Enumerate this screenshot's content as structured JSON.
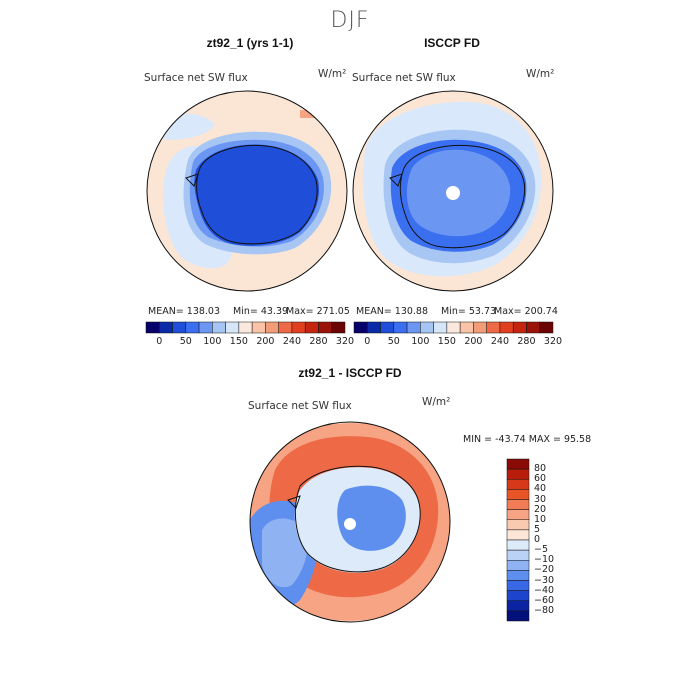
{
  "figure": {
    "season": "DJF",
    "panel_a": {
      "title": "zt92_1 (yrs 1-1)",
      "field": "Surface net SW flux",
      "units": "W/m²",
      "stats": {
        "mean": "MEAN= 138.03",
        "min": "Min=  43.39",
        "max": "Max= 271.05"
      }
    },
    "panel_b": {
      "title": "ISCCP FD",
      "field": "Surface net SW flux",
      "units": "W/m²",
      "stats": {
        "mean": "MEAN= 130.88",
        "min": "Min=  53.73",
        "max": "Max= 200.74"
      }
    },
    "panel_c": {
      "title": "zt92_1 - ISCCP FD",
      "field": "Surface net SW flux",
      "units": "W/m²",
      "minmax": "MIN = -43.74  MAX =   95.58"
    },
    "colorbar_top": {
      "ticks": [
        "0",
        "50",
        "100",
        "150",
        "200",
        "240",
        "280",
        "320"
      ],
      "colors": [
        "#08006a",
        "#0a2aa8",
        "#1f4fd8",
        "#3a6ff0",
        "#6b96f2",
        "#a6c4f4",
        "#d6e6f8",
        "#fbe8dc",
        "#f8c3a6",
        "#f39d78",
        "#ee6a47",
        "#e0401f",
        "#c3250e",
        "#9a1208",
        "#6a0503"
      ]
    },
    "colorbar_diff": {
      "ticks": [
        "80",
        "60",
        "40",
        "30",
        "20",
        "10",
        "5",
        "0",
        "−5",
        "−10",
        "−20",
        "−30",
        "−40",
        "−60",
        "−80"
      ],
      "colors": [
        "#8a0b05",
        "#b81d0c",
        "#d8381a",
        "#ea5528",
        "#f17c55",
        "#f6a483",
        "#f9c9b0",
        "#fbe6d8",
        "#ddeafa",
        "#b9d2f6",
        "#8fb3f2",
        "#5e8eee",
        "#3868e6",
        "#1c44cc",
        "#0a23a3",
        "#04117a"
      ]
    },
    "map_colors": {
      "ice": "#1f4fd8",
      "ice_dark": "#1238b8",
      "ocean_light": "#fbe6d6",
      "ocean_pale_blue": "#d9e8fa",
      "ocean_blue": "#a8c6f4",
      "warm1": "#f6a483",
      "warm2": "#ee6a47",
      "coast": "#111111"
    }
  }
}
